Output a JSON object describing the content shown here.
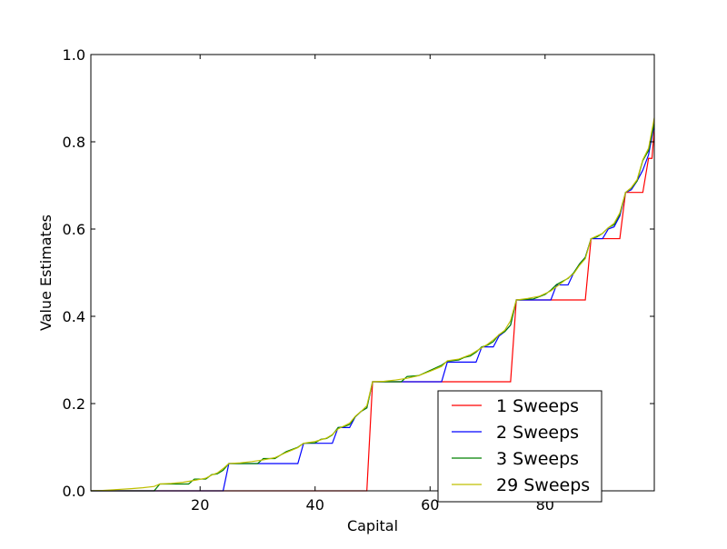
{
  "chart_data": {
    "type": "line",
    "title": "",
    "xlabel": "Capital",
    "ylabel": "Value Estimates",
    "xlim": [
      1,
      99
    ],
    "ylim": [
      0.0,
      1.0
    ],
    "x_ticks": [
      20,
      40,
      60,
      80
    ],
    "x_tick_labels": [
      "20",
      "40",
      "60",
      "80"
    ],
    "y_ticks": [
      0.0,
      0.2,
      0.4,
      0.6,
      0.8,
      1.0
    ],
    "y_tick_labels": [
      "0.0",
      "0.2",
      "0.4",
      "0.6",
      "0.8",
      "1.0"
    ],
    "grid": false,
    "legend_position": "lower right",
    "series": [
      {
        "name": "1 Sweeps",
        "color": "#ff0000",
        "points": [
          [
            1,
            0.0
          ],
          [
            49,
            0.0
          ],
          [
            50,
            0.25
          ],
          [
            74,
            0.25
          ],
          [
            75,
            0.4375
          ],
          [
            87,
            0.4375
          ],
          [
            88,
            0.578
          ],
          [
            93,
            0.578
          ],
          [
            94,
            0.684
          ],
          [
            97,
            0.684
          ],
          [
            98,
            0.762
          ],
          [
            98.6,
            0.762
          ],
          [
            99,
            0.83
          ]
        ]
      },
      {
        "name": "2 Sweeps",
        "color": "#0000ff",
        "points": [
          [
            1,
            0.0
          ],
          [
            24,
            0.0
          ],
          [
            25,
            0.0625
          ],
          [
            37,
            0.0625
          ],
          [
            38,
            0.109
          ],
          [
            43,
            0.109
          ],
          [
            44,
            0.145
          ],
          [
            46,
            0.145
          ],
          [
            47,
            0.17
          ],
          [
            48,
            0.182
          ],
          [
            49,
            0.19
          ],
          [
            50,
            0.25
          ],
          [
            62,
            0.25
          ],
          [
            63,
            0.295
          ],
          [
            68,
            0.295
          ],
          [
            69,
            0.33
          ],
          [
            71,
            0.33
          ],
          [
            72,
            0.355
          ],
          [
            73,
            0.365
          ],
          [
            74,
            0.38
          ],
          [
            75,
            0.4375
          ],
          [
            81,
            0.4375
          ],
          [
            82,
            0.472
          ],
          [
            84,
            0.472
          ],
          [
            85,
            0.5
          ],
          [
            86,
            0.52
          ],
          [
            87,
            0.535
          ],
          [
            88,
            0.578
          ],
          [
            90,
            0.578
          ],
          [
            91,
            0.6
          ],
          [
            92,
            0.605
          ],
          [
            93,
            0.63
          ],
          [
            94,
            0.684
          ],
          [
            95,
            0.69
          ],
          [
            96,
            0.71
          ],
          [
            97,
            0.735
          ],
          [
            98,
            0.77
          ],
          [
            99,
            0.84
          ]
        ]
      },
      {
        "name": "3 Sweeps",
        "color": "#008000",
        "points": [
          [
            1,
            0.0
          ],
          [
            12,
            0.0
          ],
          [
            13,
            0.0156
          ],
          [
            18,
            0.0156
          ],
          [
            19,
            0.027
          ],
          [
            21,
            0.027
          ],
          [
            22,
            0.037
          ],
          [
            23,
            0.039
          ],
          [
            24,
            0.047
          ],
          [
            25,
            0.0625
          ],
          [
            30,
            0.0625
          ],
          [
            31,
            0.074
          ],
          [
            33,
            0.074
          ],
          [
            34,
            0.082
          ],
          [
            35,
            0.09
          ],
          [
            36,
            0.095
          ],
          [
            37,
            0.1
          ],
          [
            38,
            0.109
          ],
          [
            40,
            0.11
          ],
          [
            41,
            0.118
          ],
          [
            42,
            0.12
          ],
          [
            43,
            0.128
          ],
          [
            44,
            0.145
          ],
          [
            45,
            0.147
          ],
          [
            46,
            0.152
          ],
          [
            47,
            0.17
          ],
          [
            48,
            0.182
          ],
          [
            49,
            0.19
          ],
          [
            50,
            0.25
          ],
          [
            55,
            0.25
          ],
          [
            56,
            0.262
          ],
          [
            58,
            0.264
          ],
          [
            59,
            0.27
          ],
          [
            60,
            0.276
          ],
          [
            61,
            0.282
          ],
          [
            62,
            0.288
          ],
          [
            63,
            0.297
          ],
          [
            65,
            0.3
          ],
          [
            66,
            0.306
          ],
          [
            67,
            0.309
          ],
          [
            68,
            0.318
          ],
          [
            69,
            0.33
          ],
          [
            70,
            0.334
          ],
          [
            71,
            0.342
          ],
          [
            72,
            0.358
          ],
          [
            73,
            0.365
          ],
          [
            74,
            0.38
          ],
          [
            75,
            0.4375
          ],
          [
            78,
            0.44
          ],
          [
            79,
            0.445
          ],
          [
            80,
            0.45
          ],
          [
            81,
            0.46
          ],
          [
            82,
            0.473
          ],
          [
            83,
            0.48
          ],
          [
            84,
            0.487
          ],
          [
            85,
            0.5
          ],
          [
            86,
            0.52
          ],
          [
            87,
            0.535
          ],
          [
            88,
            0.578
          ],
          [
            89,
            0.582
          ],
          [
            90,
            0.59
          ],
          [
            91,
            0.603
          ],
          [
            92,
            0.61
          ],
          [
            93,
            0.634
          ],
          [
            94,
            0.684
          ],
          [
            95,
            0.694
          ],
          [
            96,
            0.71
          ],
          [
            97,
            0.757
          ],
          [
            98,
            0.78
          ],
          [
            99,
            0.845
          ]
        ]
      },
      {
        "name": "29 Sweeps",
        "color": "#bfbf00",
        "points": [
          [
            1,
            0.0
          ],
          [
            3,
            0.0009
          ],
          [
            5,
            0.0025
          ],
          [
            8,
            0.005
          ],
          [
            10,
            0.007
          ],
          [
            12,
            0.01
          ],
          [
            13,
            0.0156
          ],
          [
            15,
            0.017
          ],
          [
            17,
            0.0195
          ],
          [
            19,
            0.024
          ],
          [
            21,
            0.029
          ],
          [
            22,
            0.036
          ],
          [
            23,
            0.041
          ],
          [
            24,
            0.051
          ],
          [
            25,
            0.0625
          ],
          [
            27,
            0.064
          ],
          [
            29,
            0.067
          ],
          [
            31,
            0.071
          ],
          [
            33,
            0.076
          ],
          [
            35,
            0.088
          ],
          [
            37,
            0.099
          ],
          [
            38,
            0.109
          ],
          [
            40,
            0.113
          ],
          [
            42,
            0.121
          ],
          [
            43,
            0.129
          ],
          [
            44,
            0.142
          ],
          [
            46,
            0.155
          ],
          [
            47,
            0.171
          ],
          [
            48,
            0.182
          ],
          [
            49,
            0.195
          ],
          [
            50,
            0.25
          ],
          [
            52,
            0.251
          ],
          [
            54,
            0.254
          ],
          [
            56,
            0.258
          ],
          [
            58,
            0.264
          ],
          [
            60,
            0.274
          ],
          [
            62,
            0.285
          ],
          [
            63,
            0.298
          ],
          [
            65,
            0.302
          ],
          [
            67,
            0.312
          ],
          [
            69,
            0.328
          ],
          [
            70,
            0.336
          ],
          [
            71,
            0.346
          ],
          [
            72,
            0.358
          ],
          [
            73,
            0.368
          ],
          [
            74,
            0.39
          ],
          [
            75,
            0.4375
          ],
          [
            77,
            0.441
          ],
          [
            79,
            0.446
          ],
          [
            81,
            0.458
          ],
          [
            82,
            0.468
          ],
          [
            83,
            0.478
          ],
          [
            85,
            0.498
          ],
          [
            86,
            0.517
          ],
          [
            87,
            0.532
          ],
          [
            88,
            0.578
          ],
          [
            90,
            0.59
          ],
          [
            91,
            0.603
          ],
          [
            92,
            0.613
          ],
          [
            93,
            0.637
          ],
          [
            94,
            0.684
          ],
          [
            95,
            0.695
          ],
          [
            96,
            0.713
          ],
          [
            97,
            0.759
          ],
          [
            98,
            0.785
          ],
          [
            99,
            0.855
          ]
        ]
      }
    ]
  }
}
